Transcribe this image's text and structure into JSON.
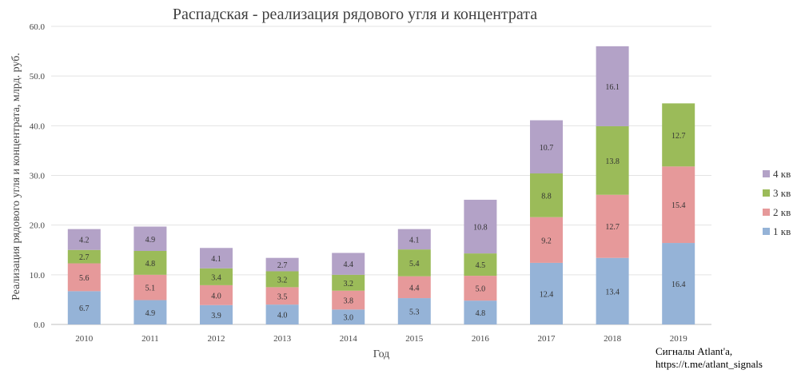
{
  "chart_data": {
    "type": "bar",
    "stacked": true,
    "title": "Распадская - реализация рядового угля и концентрата",
    "xlabel": "Год",
    "ylabel": "Реализация рядового угля и концентрата, млрд. руб.",
    "ylim": [
      0,
      60
    ],
    "yticks": [
      "0.0",
      "10.0",
      "20.0",
      "30.0",
      "40.0",
      "50.0",
      "60.0"
    ],
    "grid": true,
    "legend_position": "right",
    "categories": [
      "2010",
      "2011",
      "2012",
      "2013",
      "2014",
      "2015",
      "2016",
      "2017",
      "2018",
      "2019"
    ],
    "series": [
      {
        "name": "1 кв",
        "color": "#95b3d7",
        "values": [
          6.7,
          4.9,
          3.9,
          4.0,
          3.0,
          5.3,
          4.8,
          12.4,
          13.4,
          16.4
        ]
      },
      {
        "name": "2 кв",
        "color": "#e6999a",
        "values": [
          5.6,
          5.1,
          4.0,
          3.5,
          3.8,
          4.4,
          5.0,
          9.2,
          12.7,
          15.4
        ]
      },
      {
        "name": "3 кв",
        "color": "#9bbb59",
        "values": [
          2.7,
          4.8,
          3.4,
          3.2,
          3.2,
          5.4,
          4.5,
          8.8,
          13.8,
          12.7
        ]
      },
      {
        "name": "4 кв",
        "color": "#b3a2c7",
        "values": [
          4.2,
          4.9,
          4.1,
          2.7,
          4.4,
          4.1,
          10.8,
          10.7,
          16.1,
          null
        ]
      }
    ]
  },
  "credit": {
    "line1": "Сигналы Atlant'a,",
    "line2": "https://t.me/atlant_signals"
  }
}
